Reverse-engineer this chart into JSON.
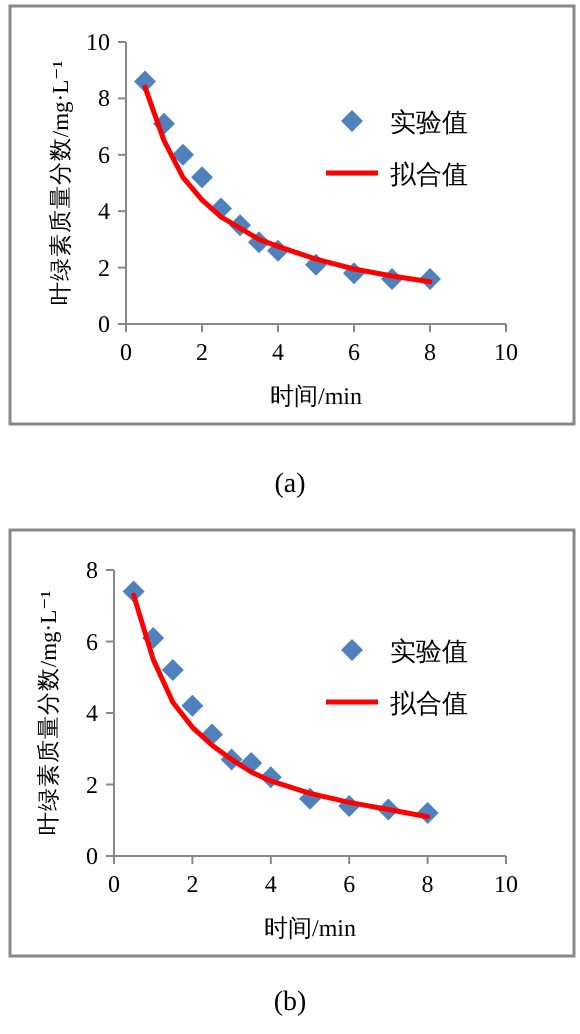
{
  "chart_data": [
    {
      "type": "scatter",
      "xlabel": "时间/min",
      "ylabel": "叶绿素质量分数/mg·L⁻¹",
      "xlim": [
        0,
        10
      ],
      "ylim": [
        0,
        10
      ],
      "xticks": [
        0,
        2,
        4,
        6,
        8,
        10
      ],
      "yticks": [
        0,
        2,
        4,
        6,
        8,
        10
      ],
      "grid": false,
      "legend": "right",
      "annotations": [
        "(a)"
      ],
      "series": [
        {
          "name": "实验值",
          "marker": "diamond",
          "color": "#4f81bd",
          "x": [
            0.5,
            1,
            1.5,
            2,
            2.5,
            3,
            3.5,
            4,
            5,
            6,
            7,
            8
          ],
          "values": [
            8.6,
            7.1,
            6.0,
            5.2,
            4.1,
            3.5,
            2.9,
            2.6,
            2.1,
            1.8,
            1.6,
            1.6
          ]
        },
        {
          "name": "拟合值",
          "type": "line",
          "marker": "none",
          "line_style": "solid",
          "color": "#ff0000",
          "x": [
            0.5,
            1,
            1.5,
            2,
            2.5,
            3,
            3.5,
            4,
            5,
            6,
            7,
            8
          ],
          "values": [
            8.4,
            6.5,
            5.2,
            4.4,
            3.8,
            3.4,
            3.0,
            2.75,
            2.3,
            1.95,
            1.7,
            1.5
          ]
        }
      ]
    },
    {
      "type": "scatter",
      "xlabel": "时间/min",
      "ylabel": "叶绿素质量分数/mg·L⁻¹",
      "xlim": [
        0,
        10
      ],
      "ylim": [
        0,
        8
      ],
      "xticks": [
        0,
        2,
        4,
        6,
        8,
        10
      ],
      "yticks": [
        0,
        2,
        4,
        6,
        8
      ],
      "grid": false,
      "legend": "right",
      "annotations": [
        "(b)"
      ],
      "series": [
        {
          "name": "实验值",
          "marker": "diamond",
          "color": "#4f81bd",
          "x": [
            0.5,
            1,
            1.5,
            2,
            2.5,
            3,
            3.5,
            4,
            5,
            6,
            7,
            8
          ],
          "values": [
            7.4,
            6.1,
            5.2,
            4.2,
            3.4,
            2.7,
            2.6,
            2.2,
            1.6,
            1.4,
            1.3,
            1.2
          ]
        },
        {
          "name": "拟合值",
          "type": "line",
          "marker": "none",
          "line_style": "solid",
          "color": "#ff0000",
          "x": [
            0.5,
            1,
            1.5,
            2,
            2.5,
            3,
            3.5,
            4,
            5,
            6,
            7,
            8
          ],
          "values": [
            7.3,
            5.5,
            4.3,
            3.6,
            3.1,
            2.7,
            2.35,
            2.1,
            1.75,
            1.5,
            1.3,
            1.1
          ]
        }
      ]
    }
  ]
}
